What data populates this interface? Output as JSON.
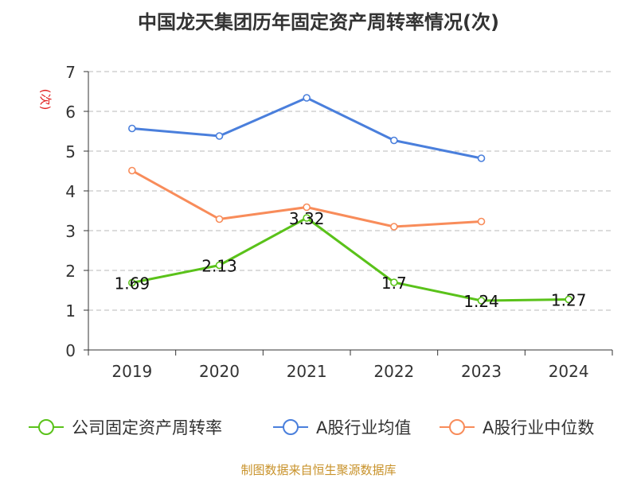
{
  "colors": {
    "company": "#5ac21a",
    "industry_avg": "#4a7fdc",
    "industry_median": "#f88c5a",
    "unit": "#e02020",
    "source": "#c8922a",
    "grid": "#c8c8c8",
    "axis": "#333333"
  },
  "chart_data": {
    "type": "line",
    "title": "中国龙天集团历年固定资产周转率情况(次)",
    "ylabel": "(次)",
    "xlabel": "",
    "categories": [
      "2019",
      "2020",
      "2021",
      "2022",
      "2023",
      "2024"
    ],
    "ylim": [
      0,
      7
    ],
    "yticks": [
      "0",
      "1",
      "2",
      "3",
      "4",
      "5",
      "6",
      "7"
    ],
    "grid": "horizontal dashed",
    "legend_position": "bottom",
    "series": [
      {
        "name": "公司固定资产周转率",
        "values": [
          1.69,
          2.13,
          3.32,
          1.7,
          1.24,
          1.27
        ],
        "labels": [
          "1.69",
          "2.13",
          "3.32",
          "1.7",
          "1.24",
          "1.27"
        ]
      },
      {
        "name": "A股行业均值",
        "values": [
          5.57,
          5.38,
          6.34,
          5.27,
          4.82,
          null
        ]
      },
      {
        "name": "A股行业中位数",
        "values": [
          4.51,
          3.29,
          3.59,
          3.1,
          3.23,
          null
        ]
      }
    ]
  },
  "source_text": "制图数据来自恒生聚源数据库"
}
